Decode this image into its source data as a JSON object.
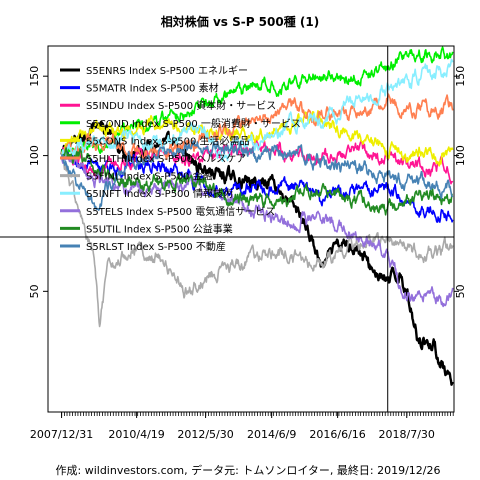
{
  "chart_data": {
    "type": "line",
    "title": "相対株価 vs S-P 500種 (1)",
    "xlabel": "",
    "ylabel": "",
    "y_scale": "log",
    "ylim": [
      27,
      175
    ],
    "xlim": [
      "2007-08-01",
      "2020-01-10"
    ],
    "x_ticks": [
      "2007/12/31",
      "2010/4/19",
      "2012/5/30",
      "2014/6/9",
      "2016/6/16",
      "2018/7/30"
    ],
    "y_ticks": [
      50,
      100,
      150
    ],
    "grid": false,
    "legend_position": "top-left",
    "crosshair": {
      "x": "2017-12-29",
      "y": 66
    },
    "caption": "作成: wildinvestors.com, データ元: トムソンロイター, 最終日: 2019/12/26",
    "series": [
      {
        "name": "S5ENRS Index S-P500 エネルギー",
        "color": "#000000",
        "x": [
          "2008-01-01",
          "2009-01-01",
          "2010-01-01",
          "2011-01-01",
          "2012-01-01",
          "2013-01-01",
          "2014-01-01",
          "2014-06-01",
          "2015-01-01",
          "2015-06-01",
          "2016-01-01",
          "2016-06-01",
          "2017-01-01",
          "2017-06-01",
          "2018-01-01",
          "2018-06-01",
          "2018-12-01",
          "2019-06-01",
          "2019-12-26"
        ],
        "values": [
          100,
          118,
          102,
          108,
          96,
          90,
          86,
          90,
          78,
          72,
          56,
          62,
          64,
          57,
          52,
          55,
          40,
          38,
          30
        ]
      },
      {
        "name": "S5MATR Index S-P500 素材",
        "color": "#0000ff",
        "x": [
          "2008-01-01",
          "2009-01-01",
          "2010-01-01",
          "2011-01-01",
          "2012-01-01",
          "2013-01-01",
          "2014-01-01",
          "2015-01-01",
          "2016-01-01",
          "2017-01-01",
          "2018-01-01",
          "2019-01-01",
          "2019-12-26"
        ],
        "values": [
          100,
          92,
          95,
          96,
          90,
          84,
          86,
          86,
          80,
          82,
          85,
          76,
          74
        ]
      },
      {
        "name": "S5INDU Index S-P500 資本財・サービス",
        "color": "#ff1493",
        "x": [
          "2008-01-01",
          "2009-01-01",
          "2010-01-01",
          "2011-01-01",
          "2012-01-01",
          "2013-01-01",
          "2014-01-01",
          "2015-01-01",
          "2016-01-01",
          "2017-01-01",
          "2018-01-01",
          "2019-01-01",
          "2019-12-26"
        ],
        "values": [
          100,
          92,
          98,
          102,
          99,
          100,
          106,
          102,
          98,
          104,
          98,
          94,
          92
        ]
      },
      {
        "name": "S5COND Index S-P500 一般消費財・サービス",
        "color": "#00ee00",
        "x": [
          "2008-01-01",
          "2009-01-01",
          "2010-01-01",
          "2011-01-01",
          "2012-01-01",
          "2013-01-01",
          "2014-01-01",
          "2015-01-01",
          "2016-01-01",
          "2017-01-01",
          "2018-01-01",
          "2018-06-01",
          "2019-01-01",
          "2019-12-26"
        ],
        "values": [
          100,
          104,
          115,
          120,
          128,
          134,
          142,
          146,
          152,
          150,
          158,
          168,
          164,
          166
        ]
      },
      {
        "name": "S5CONS Index S-P500 生活必需品",
        "color": "#eeee00",
        "x": [
          "2008-01-01",
          "2009-01-01",
          "2010-01-01",
          "2011-01-01",
          "2012-01-01",
          "2013-01-01",
          "2014-01-01",
          "2015-01-01",
          "2016-01-01",
          "2017-01-01",
          "2018-01-01",
          "2019-01-01",
          "2019-12-26"
        ],
        "values": [
          100,
          118,
          114,
          116,
          116,
          112,
          112,
          118,
          120,
          110,
          102,
          102,
          100
        ]
      },
      {
        "name": "S5HLTH Index S-P500 ヘルスケア",
        "color": "#ff7f50",
        "x": [
          "2008-01-01",
          "2009-01-01",
          "2010-01-01",
          "2011-01-01",
          "2012-01-01",
          "2013-01-01",
          "2014-01-01",
          "2015-01-01",
          "2016-01-01",
          "2017-01-01",
          "2018-01-01",
          "2019-01-01",
          "2019-12-26"
        ],
        "values": [
          100,
          108,
          104,
          102,
          106,
          114,
          120,
          128,
          124,
          122,
          130,
          126,
          130
        ]
      },
      {
        "name": "S5FINL Index S-P500 金融",
        "color": "#aaaaaa",
        "x": [
          "2008-01-01",
          "2008-06-01",
          "2009-01-01",
          "2009-03-01",
          "2009-06-01",
          "2010-01-01",
          "2011-01-01",
          "2011-10-01",
          "2012-06-01",
          "2013-01-01",
          "2014-01-01",
          "2015-01-01",
          "2016-01-01",
          "2017-01-01",
          "2018-01-01",
          "2019-01-01",
          "2019-12-26"
        ],
        "values": [
          100,
          80,
          58,
          42,
          55,
          62,
          60,
          50,
          54,
          57,
          60,
          60,
          57,
          64,
          64,
          60,
          63
        ]
      },
      {
        "name": "S5INFT Index S-P500 情報技術",
        "color": "#88eeff",
        "x": [
          "2008-01-01",
          "2009-01-01",
          "2010-01-01",
          "2011-01-01",
          "2012-01-01",
          "2013-01-01",
          "2014-01-01",
          "2015-01-01",
          "2016-01-01",
          "2017-01-01",
          "2018-01-01",
          "2019-01-01",
          "2019-12-26"
        ],
        "values": [
          100,
          104,
          110,
          106,
          114,
          104,
          108,
          118,
          120,
          132,
          140,
          150,
          160
        ]
      },
      {
        "name": "S5TELS Index S-P500 電気通信サービス",
        "color": "#9370db",
        "x": [
          "2008-01-01",
          "2009-01-01",
          "2010-01-01",
          "2011-01-01",
          "2012-01-01",
          "2013-01-01",
          "2014-01-01",
          "2015-01-01",
          "2016-01-01",
          "2017-01-01",
          "2018-01-01",
          "2018-06-01",
          "2019-01-01",
          "2019-12-26"
        ],
        "values": [
          100,
          88,
          86,
          84,
          88,
          80,
          76,
          72,
          72,
          66,
          60,
          50,
          48,
          49
        ]
      },
      {
        "name": "S5UTIL Index S-P500 公益事業",
        "color": "#228b22",
        "x": [
          "2008-01-01",
          "2009-01-01",
          "2010-01-01",
          "2011-01-01",
          "2012-01-01",
          "2013-01-01",
          "2014-01-01",
          "2015-01-01",
          "2016-01-01",
          "2017-01-01",
          "2018-01-01",
          "2019-01-01",
          "2019-12-26"
        ],
        "values": [
          100,
          96,
          86,
          88,
          88,
          80,
          80,
          80,
          84,
          80,
          76,
          82,
          80
        ]
      },
      {
        "name": "S5RLST Index S-P500 不動産",
        "color": "#4682b4",
        "x": [
          "2008-01-01",
          "2009-01-01",
          "2010-01-01",
          "2011-01-01",
          "2012-01-01",
          "2013-01-01",
          "2014-01-01",
          "2015-01-01",
          "2016-01-01",
          "2017-01-01",
          "2018-01-01",
          "2019-01-01",
          "2019-12-26"
        ],
        "values": [
          100,
          78,
          96,
          100,
          104,
          104,
          100,
          104,
          96,
          96,
          90,
          88,
          86
        ]
      }
    ]
  }
}
